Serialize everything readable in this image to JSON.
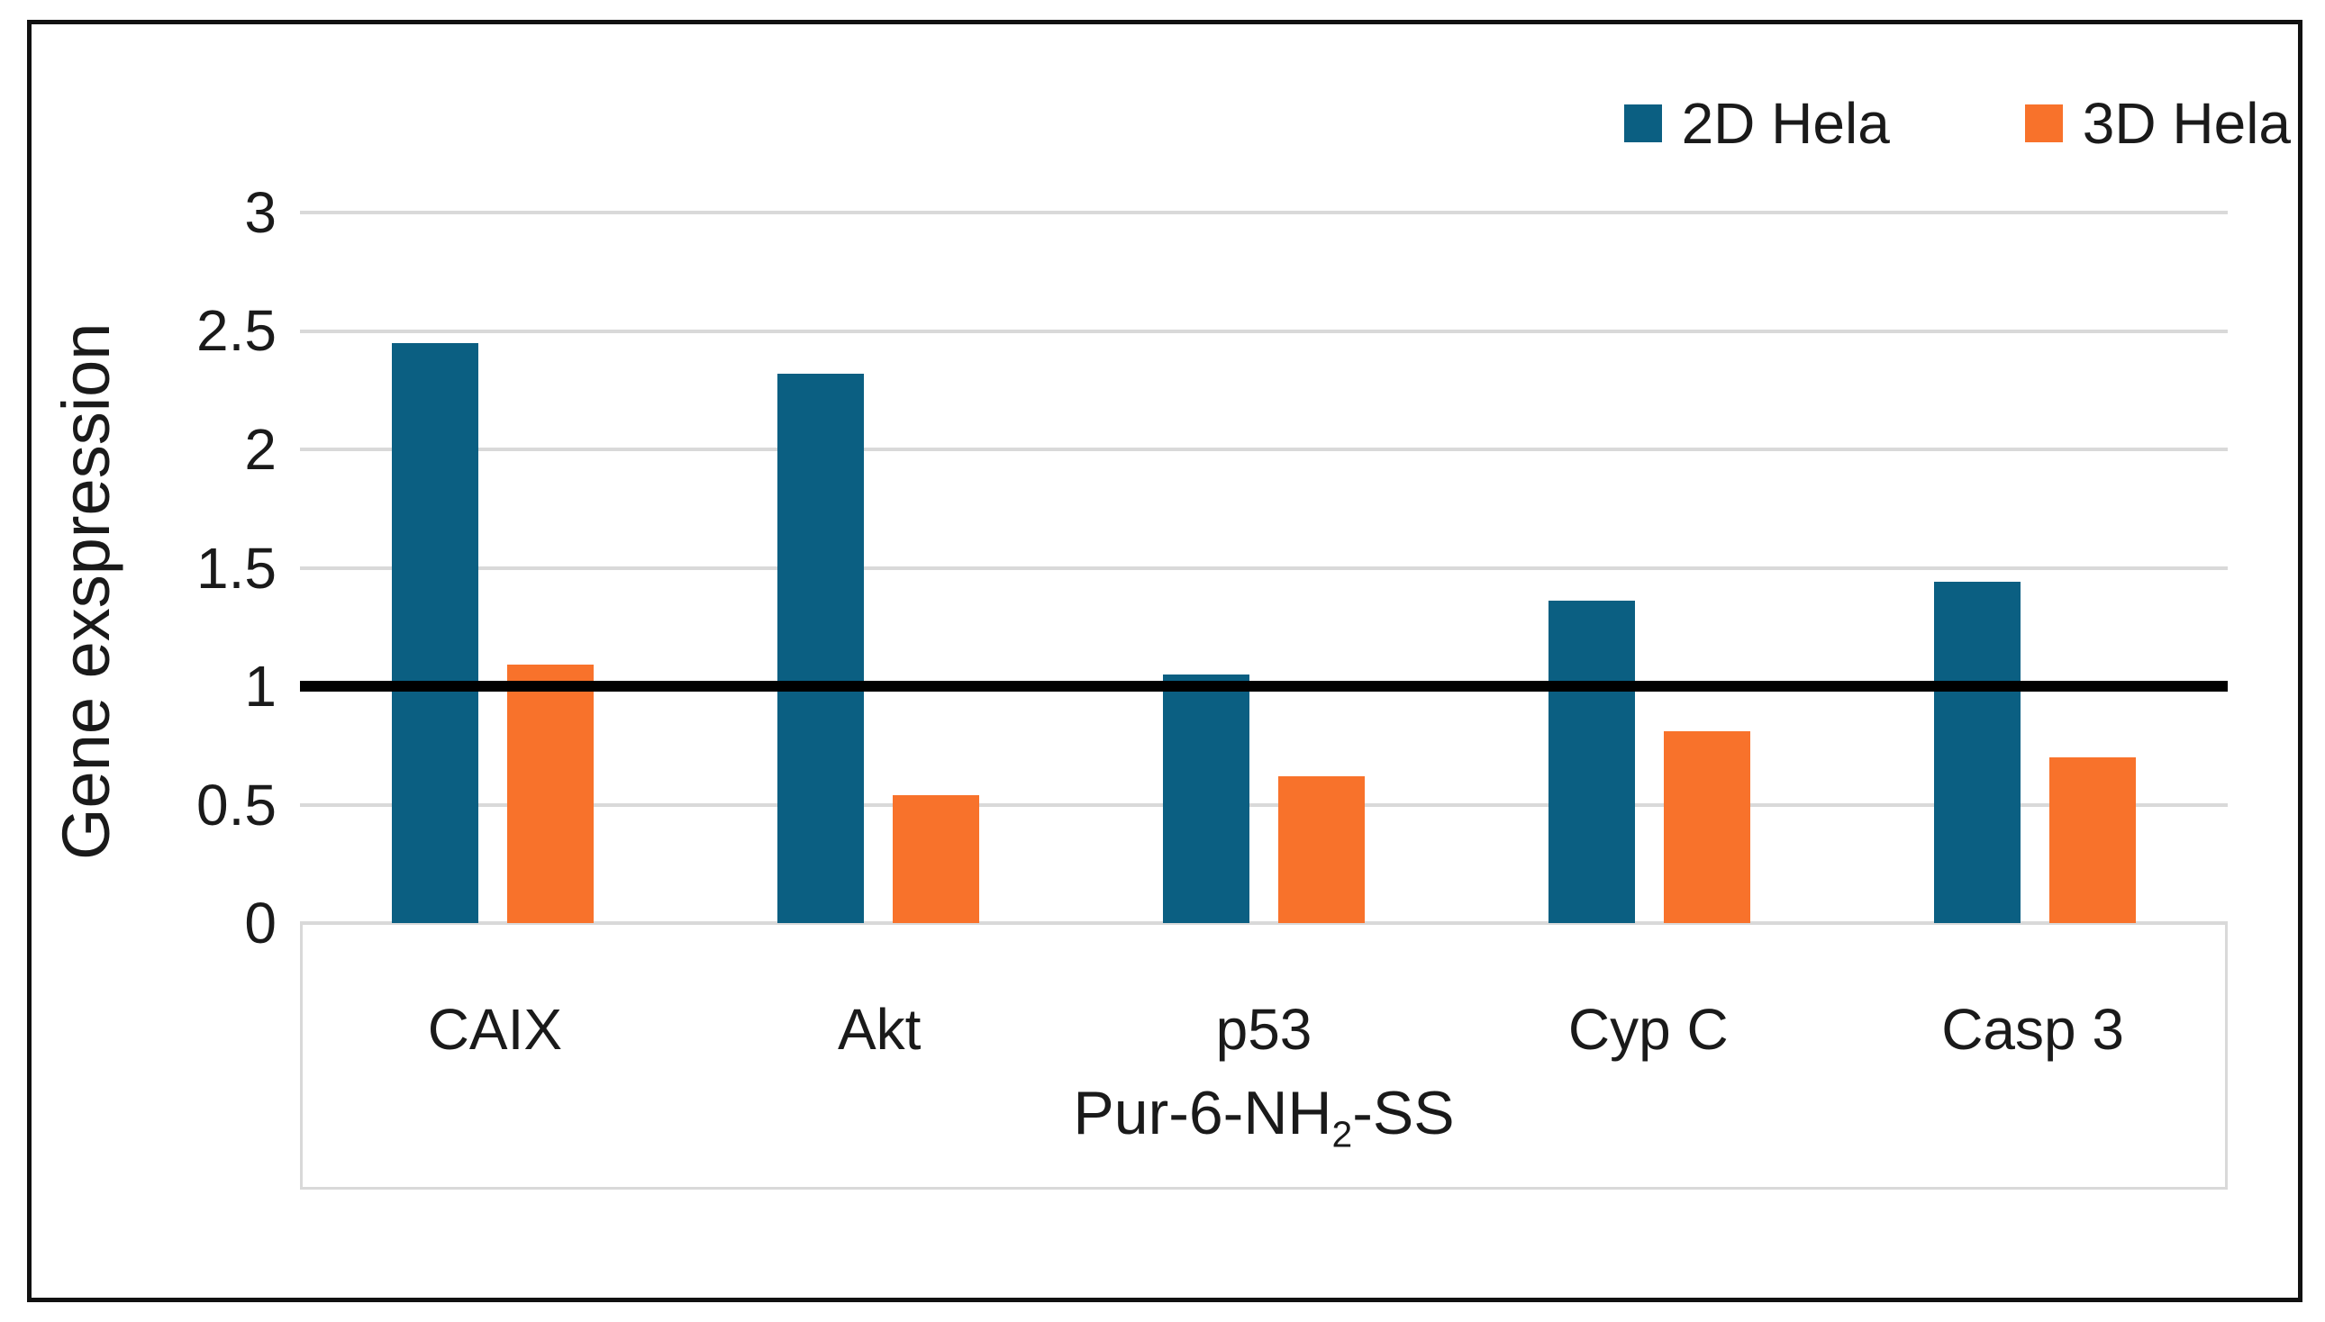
{
  "legend": {
    "items": [
      {
        "label": "2D Hela",
        "color": "#0B5F82"
      },
      {
        "label": "3D Hela",
        "color": "#F8722B"
      }
    ]
  },
  "y_axis": {
    "label": "Gene exspression",
    "tick_labels": [
      "0",
      "0.5",
      "1",
      "1.5",
      "2",
      "2.5",
      "3"
    ]
  },
  "x_axis": {
    "label_main": "Pur-6-NH",
    "label_sub": "2",
    "label_tail": "-SS"
  },
  "chart_data": {
    "type": "bar",
    "title": "",
    "categories": [
      "CAIX",
      "Akt",
      "p53",
      "Cyp C",
      "Casp 3"
    ],
    "series": [
      {
        "name": "2D Hela",
        "color": "#0B5F82",
        "values": [
          2.45,
          2.32,
          1.05,
          1.36,
          1.44
        ]
      },
      {
        "name": "3D Hela",
        "color": "#F8722B",
        "values": [
          1.09,
          0.54,
          0.62,
          0.81,
          0.7
        ]
      }
    ],
    "xlabel": "Pur-6-NH2-SS",
    "ylabel": "Gene exspression",
    "ylim": [
      0,
      3
    ],
    "yticks": [
      0,
      0.5,
      1,
      1.5,
      2,
      2.5,
      3
    ],
    "reference_line": {
      "value": 1,
      "color": "#000000"
    },
    "grid": true,
    "gridline_color": "#D9D9D9",
    "legend_position": "top-right"
  }
}
